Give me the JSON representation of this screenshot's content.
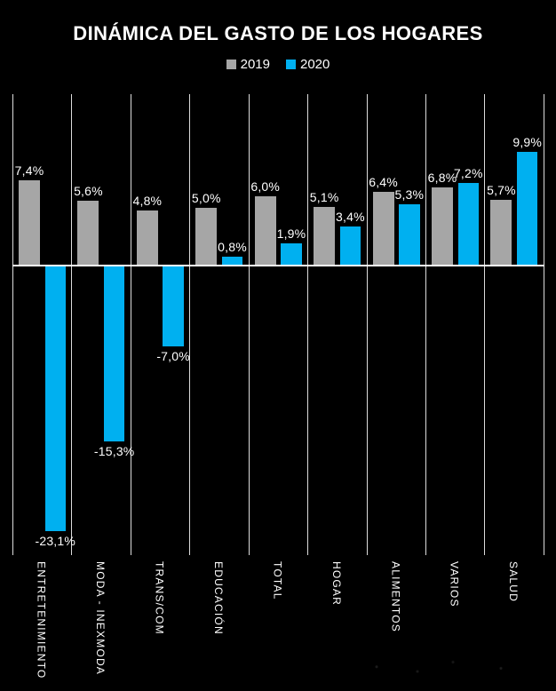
{
  "title": "DINÁMICA DEL GASTO DE LOS HOGARES",
  "legend": [
    {
      "label": "2019",
      "color": "#a6a6a6"
    },
    {
      "label": "2020",
      "color": "#00b0f0"
    }
  ],
  "colors": {
    "background": "#000000",
    "bar_2019": "#a6a6a6",
    "bar_2020": "#00b0f0",
    "gridline": "#dcdcdc",
    "zero_line": "#ffffff",
    "text": "#ffffff"
  },
  "chart_data": {
    "type": "bar",
    "title": "DINÁMICA DEL GASTO DE LOS HOGARES",
    "categories": [
      "ENTRETENIMIENTO",
      "MODA - INEXMODA",
      "TRANS/COM",
      "EDUCACIÓN",
      "TOTAL",
      "HOGAR",
      "ALIMENTOS",
      "VARIOS",
      "SALUD"
    ],
    "series": [
      {
        "name": "2019",
        "color": "#a6a6a6",
        "values": [
          7.4,
          5.6,
          4.8,
          5.0,
          6.0,
          5.1,
          6.4,
          6.8,
          5.7
        ]
      },
      {
        "name": "2020",
        "color": "#00b0f0",
        "values": [
          -23.1,
          -15.3,
          -7.0,
          0.8,
          1.9,
          3.4,
          5.3,
          7.2,
          9.9
        ]
      }
    ],
    "data_labels": [
      [
        "7,4%",
        "5,6%",
        "4,8%",
        "5,0%",
        "6,0%",
        "5,1%",
        "6,4%",
        "6,8%",
        "5,7%"
      ],
      [
        "-23,1%",
        "-15,3%",
        "-7,0%",
        "0,8%",
        "1,9%",
        "3,4%",
        "5,3%",
        "7,2%",
        "9,9%"
      ]
    ],
    "ylim": [
      -25,
      15
    ],
    "grid": "vertical-category-separators-only",
    "legend_position": "top",
    "value_format": "comma-decimal-percent"
  }
}
